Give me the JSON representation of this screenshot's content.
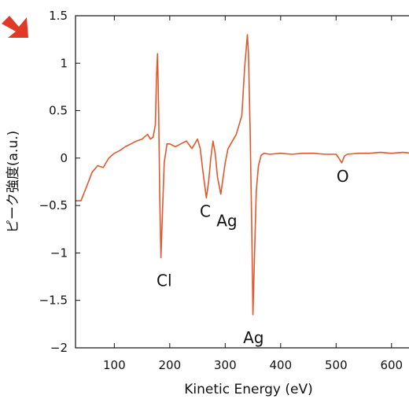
{
  "chart_data": {
    "type": "line",
    "title": "",
    "xlabel": "Kinetic Energy (eV)",
    "ylabel": "ピーク強度(a.u.)",
    "xlim": [
      30,
      640
    ],
    "ylim": [
      -2,
      1.5
    ],
    "xticks": [
      100,
      200,
      300,
      400,
      500,
      600
    ],
    "yticks": [
      1.5,
      1,
      0.5,
      0,
      -0.5,
      -1,
      -1.5,
      -2
    ],
    "ytick_labels": [
      "1.5",
      "1",
      "0.5",
      "0",
      "−0.5",
      "−1",
      "−1.5",
      "−2"
    ],
    "grid": false,
    "legend": "none",
    "line_color": "#e2572b",
    "arrow_color": "#e03a26",
    "series": [
      {
        "x": [
          30,
          40,
          50,
          60,
          70,
          80,
          90,
          100,
          110,
          120,
          130,
          140,
          150,
          160,
          165,
          170,
          174,
          176,
          178,
          180,
          182,
          184,
          186,
          190,
          195,
          200,
          210,
          220,
          230,
          240,
          245,
          250,
          255,
          260,
          266,
          270,
          274,
          278,
          282,
          286,
          292,
          300,
          305,
          310,
          320,
          330,
          335,
          340,
          342,
          345,
          348,
          350,
          352,
          356,
          360,
          365,
          370,
          380,
          400,
          420,
          440,
          460,
          480,
          500,
          505,
          510,
          515,
          520,
          540,
          560,
          580,
          600,
          620,
          640
        ],
        "y": [
          -0.45,
          -0.45,
          -0.3,
          -0.15,
          -0.08,
          -0.1,
          0.0,
          0.05,
          0.08,
          0.12,
          0.15,
          0.18,
          0.2,
          0.25,
          0.2,
          0.22,
          0.35,
          0.85,
          1.1,
          0.5,
          -0.4,
          -1.05,
          -0.7,
          -0.05,
          0.15,
          0.15,
          0.12,
          0.15,
          0.18,
          0.1,
          0.15,
          0.2,
          0.1,
          -0.15,
          -0.42,
          -0.25,
          0.0,
          0.18,
          0.05,
          -0.2,
          -0.38,
          -0.05,
          0.1,
          0.15,
          0.25,
          0.45,
          0.95,
          1.3,
          1.1,
          0.3,
          -0.8,
          -1.65,
          -1.2,
          -0.35,
          -0.08,
          0.03,
          0.05,
          0.04,
          0.05,
          0.04,
          0.05,
          0.05,
          0.04,
          0.04,
          0.0,
          -0.05,
          0.02,
          0.04,
          0.05,
          0.05,
          0.06,
          0.05,
          0.06,
          0.05
        ]
      }
    ],
    "annotations": [
      {
        "text": "Cl",
        "x": 190,
        "y": -1.35
      },
      {
        "text": "C",
        "x": 264,
        "y": -0.62
      },
      {
        "text": "Ag",
        "x": 303,
        "y": -0.72
      },
      {
        "text": "Ag",
        "x": 351,
        "y": -1.95
      },
      {
        "text": "O",
        "x": 512,
        "y": -0.25
      }
    ]
  }
}
